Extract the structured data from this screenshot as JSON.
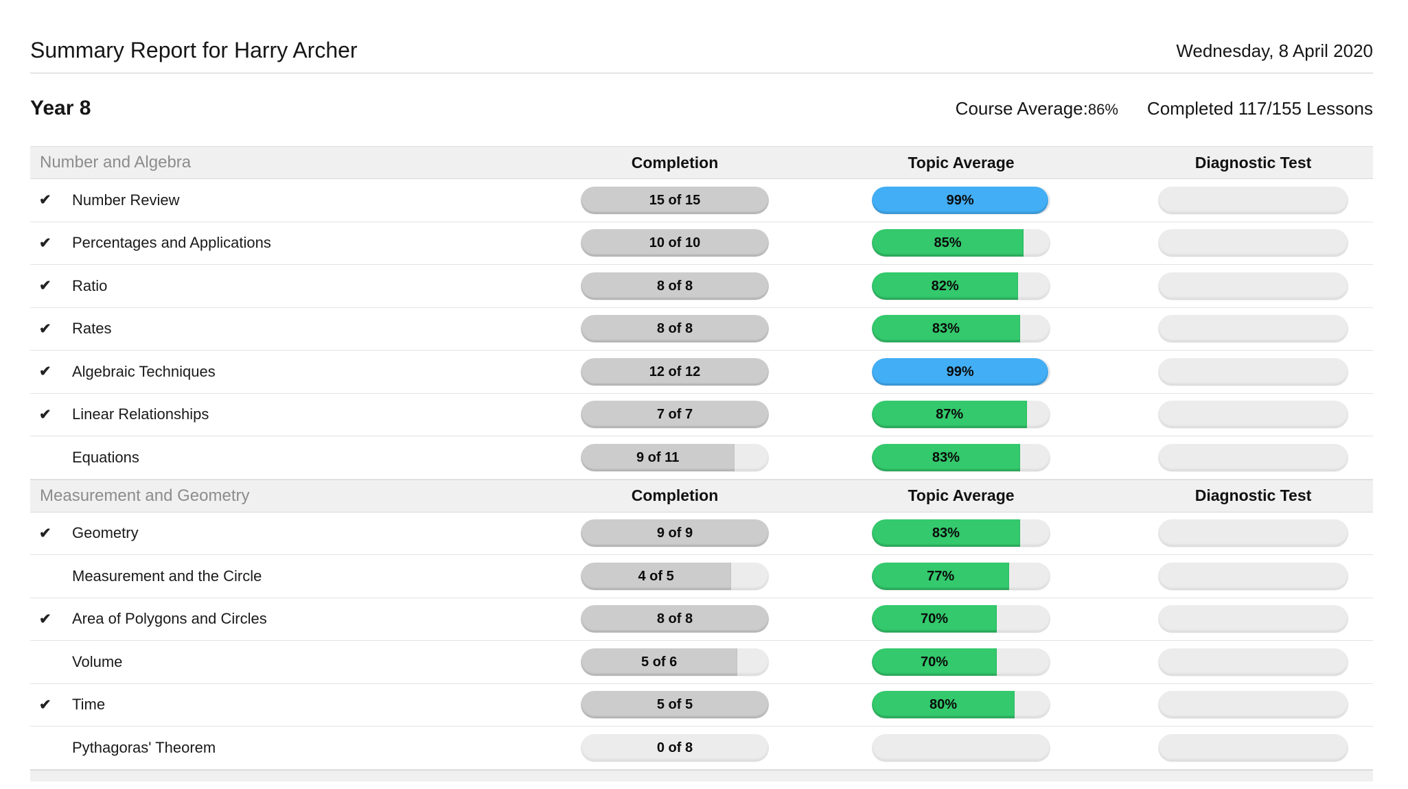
{
  "header": {
    "title": "Summary Report for Harry Archer",
    "date": "Wednesday, 8 April 2020"
  },
  "sub_header": {
    "year_label": "Year 8",
    "course_average_label": "Course Average:",
    "course_average_value": "86%",
    "completed_text": "Completed 117/155 Lessons"
  },
  "columns": {
    "completion": "Completion",
    "topic_average": "Topic Average",
    "diagnostic_test": "Diagnostic Test"
  },
  "icons": {
    "check": "✔"
  },
  "colors": {
    "green": "#33c96c",
    "blue": "#42aef5",
    "gray_fill": "#cccccc",
    "track": "#ececec",
    "band_bg": "#f0f0f0"
  },
  "sections": [
    {
      "label": "Number and Algebra",
      "topics": [
        {
          "name": "Number Review",
          "completed": true,
          "completion_label": "15 of 15",
          "completion_done": 15,
          "completion_total": 15,
          "average_label": "99%",
          "average": 99,
          "average_color": "blue"
        },
        {
          "name": "Percentages and Applications",
          "completed": true,
          "completion_label": "10 of 10",
          "completion_done": 10,
          "completion_total": 10,
          "average_label": "85%",
          "average": 85,
          "average_color": "green"
        },
        {
          "name": "Ratio",
          "completed": true,
          "completion_label": "8 of 8",
          "completion_done": 8,
          "completion_total": 8,
          "average_label": "82%",
          "average": 82,
          "average_color": "green"
        },
        {
          "name": "Rates",
          "completed": true,
          "completion_label": "8 of 8",
          "completion_done": 8,
          "completion_total": 8,
          "average_label": "83%",
          "average": 83,
          "average_color": "green"
        },
        {
          "name": "Algebraic Techniques",
          "completed": true,
          "completion_label": "12 of 12",
          "completion_done": 12,
          "completion_total": 12,
          "average_label": "99%",
          "average": 99,
          "average_color": "blue"
        },
        {
          "name": "Linear Relationships",
          "completed": true,
          "completion_label": "7 of 7",
          "completion_done": 7,
          "completion_total": 7,
          "average_label": "87%",
          "average": 87,
          "average_color": "green"
        },
        {
          "name": "Equations",
          "completed": false,
          "completion_label": "9 of 11",
          "completion_done": 9,
          "completion_total": 11,
          "average_label": "83%",
          "average": 83,
          "average_color": "green"
        }
      ]
    },
    {
      "label": "Measurement and Geometry",
      "topics": [
        {
          "name": "Geometry",
          "completed": true,
          "completion_label": "9 of 9",
          "completion_done": 9,
          "completion_total": 9,
          "average_label": "83%",
          "average": 83,
          "average_color": "green"
        },
        {
          "name": "Measurement and the Circle",
          "completed": false,
          "completion_label": "4 of 5",
          "completion_done": 4,
          "completion_total": 5,
          "average_label": "77%",
          "average": 77,
          "average_color": "green"
        },
        {
          "name": "Area of Polygons and Circles",
          "completed": true,
          "completion_label": "8 of 8",
          "completion_done": 8,
          "completion_total": 8,
          "average_label": "70%",
          "average": 70,
          "average_color": "green"
        },
        {
          "name": "Volume",
          "completed": false,
          "completion_label": "5 of 6",
          "completion_done": 5,
          "completion_total": 6,
          "average_label": "70%",
          "average": 70,
          "average_color": "green"
        },
        {
          "name": "Time",
          "completed": true,
          "completion_label": "5 of 5",
          "completion_done": 5,
          "completion_total": 5,
          "average_label": "80%",
          "average": 80,
          "average_color": "green"
        },
        {
          "name": "Pythagoras' Theorem",
          "completed": false,
          "completion_label": "0 of 8",
          "completion_done": 0,
          "completion_total": 8,
          "average_label": "",
          "average": null,
          "average_color": null
        }
      ]
    }
  ]
}
